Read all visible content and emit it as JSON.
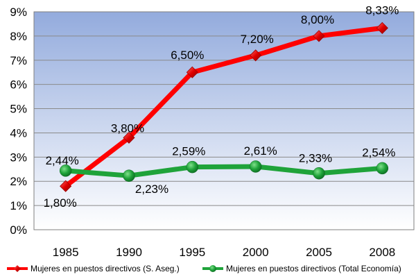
{
  "chart_data": {
    "type": "line",
    "categories": [
      "1985",
      "1990",
      "1995",
      "2000",
      "2005",
      "2008"
    ],
    "ylim": [
      0,
      9
    ],
    "y_ticks": [
      "0%",
      "1%",
      "2%",
      "3%",
      "4%",
      "5%",
      "6%",
      "7%",
      "8%",
      "9%"
    ],
    "grid": true,
    "legend_position": "bottom",
    "series": [
      {
        "name": "Mujeres en puestos directivos (S. Aseg.)",
        "color": "#ff0000",
        "marker": "diamond",
        "values": [
          1.8,
          3.8,
          6.5,
          7.2,
          8.0,
          8.33
        ],
        "labels": [
          "1,80%",
          "3,80%",
          "6,50%",
          "7,20%",
          "8,00%",
          "8,33%"
        ]
      },
      {
        "name": "Mujeres en puestos directivos (Total Economía)",
        "color": "#1fa33a",
        "marker": "circle",
        "values": [
          2.44,
          2.23,
          2.59,
          2.61,
          2.33,
          2.54
        ],
        "labels": [
          "2,44%",
          "2,23%",
          "2,59%",
          "2,61%",
          "2,33%",
          "2,54%"
        ]
      }
    ]
  }
}
